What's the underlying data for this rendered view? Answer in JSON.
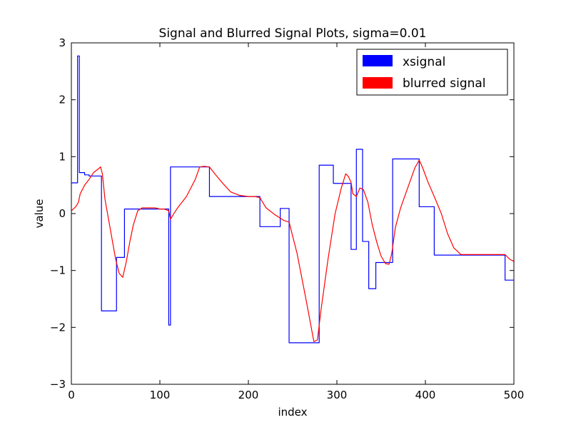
{
  "chart_data": {
    "type": "line",
    "title": "Signal and Blurred Signal Plots, sigma=0.01",
    "xlabel": "index",
    "ylabel": "value",
    "xlim": [
      0,
      500
    ],
    "ylim": [
      -3,
      3
    ],
    "xticks": [
      0,
      100,
      200,
      300,
      400,
      500
    ],
    "yticks": [
      -3,
      -2,
      -1,
      0,
      1,
      2,
      3
    ],
    "xtick_labels": [
      "0",
      "100",
      "200",
      "300",
      "400",
      "500"
    ],
    "ytick_labels": [
      "−3",
      "−2",
      "−1",
      "0",
      "1",
      "2",
      "3"
    ],
    "grid": false,
    "legend_position": "top-right",
    "series": [
      {
        "name": "xsignal",
        "color": "#0000ff",
        "x": [
          0,
          7,
          7,
          9,
          9,
          15,
          15,
          20,
          20,
          34,
          34,
          51,
          51,
          60,
          60,
          110,
          110,
          112,
          112,
          156,
          156,
          213,
          213,
          236,
          236,
          246,
          246,
          280,
          280,
          296,
          296,
          316,
          316,
          322,
          322,
          329,
          329,
          336,
          336,
          344,
          344,
          363,
          363,
          393,
          393,
          410,
          410,
          490,
          490,
          500
        ],
        "y": [
          0.54,
          0.54,
          2.77,
          2.77,
          0.72,
          0.72,
          0.68,
          0.68,
          0.66,
          0.66,
          -1.71,
          -1.71,
          -0.77,
          -0.77,
          0.08,
          0.08,
          -1.96,
          -1.96,
          0.82,
          0.82,
          0.3,
          0.3,
          -0.23,
          -0.23,
          0.09,
          0.09,
          -2.27,
          -2.27,
          0.85,
          0.85,
          0.53,
          0.53,
          -0.63,
          -0.63,
          1.13,
          1.13,
          -0.49,
          -0.49,
          -1.32,
          -1.32,
          -0.86,
          -0.86,
          0.96,
          0.96,
          0.12,
          0.12,
          -0.73,
          -0.73,
          -1.17,
          -1.17
        ]
      },
      {
        "name": "blurred signal",
        "color": "#ff0000",
        "x": [
          0,
          5,
          8,
          10,
          15,
          20,
          25,
          30,
          33,
          35,
          38,
          42,
          46,
          50,
          54,
          58,
          62,
          66,
          70,
          75,
          80,
          85,
          90,
          95,
          100,
          105,
          110,
          112,
          115,
          120,
          125,
          130,
          135,
          140,
          145,
          150,
          156,
          162,
          170,
          180,
          190,
          200,
          207,
          213,
          220,
          230,
          240,
          246,
          255,
          265,
          274,
          278,
          282,
          290,
          298,
          305,
          310,
          313,
          316,
          318,
          322,
          326,
          330,
          335,
          340,
          345,
          350,
          355,
          359,
          362,
          366,
          372,
          380,
          388,
          393,
          397,
          403,
          410,
          418,
          425,
          432,
          440,
          450,
          460,
          470,
          480,
          490,
          495,
          500
        ],
        "y": [
          0.05,
          0.12,
          0.2,
          0.35,
          0.5,
          0.6,
          0.72,
          0.78,
          0.82,
          0.7,
          0.25,
          -0.1,
          -0.45,
          -0.8,
          -1.05,
          -1.12,
          -0.85,
          -0.5,
          -0.2,
          0.05,
          0.1,
          0.1,
          0.1,
          0.1,
          0.08,
          0.08,
          0.05,
          -0.1,
          -0.02,
          0.1,
          0.2,
          0.3,
          0.45,
          0.6,
          0.82,
          0.83,
          0.82,
          0.7,
          0.55,
          0.38,
          0.32,
          0.3,
          0.3,
          0.28,
          0.1,
          -0.02,
          -0.12,
          -0.15,
          -0.7,
          -1.5,
          -2.25,
          -2.22,
          -1.7,
          -0.8,
          0.0,
          0.45,
          0.7,
          0.65,
          0.55,
          0.35,
          0.3,
          0.45,
          0.42,
          0.2,
          -0.2,
          -0.5,
          -0.75,
          -0.88,
          -0.89,
          -0.7,
          -0.25,
          0.1,
          0.45,
          0.8,
          0.94,
          0.8,
          0.55,
          0.3,
          0.0,
          -0.35,
          -0.6,
          -0.72,
          -0.72,
          -0.72,
          -0.72,
          -0.72,
          -0.72,
          -0.8,
          -0.84
        ]
      }
    ]
  }
}
